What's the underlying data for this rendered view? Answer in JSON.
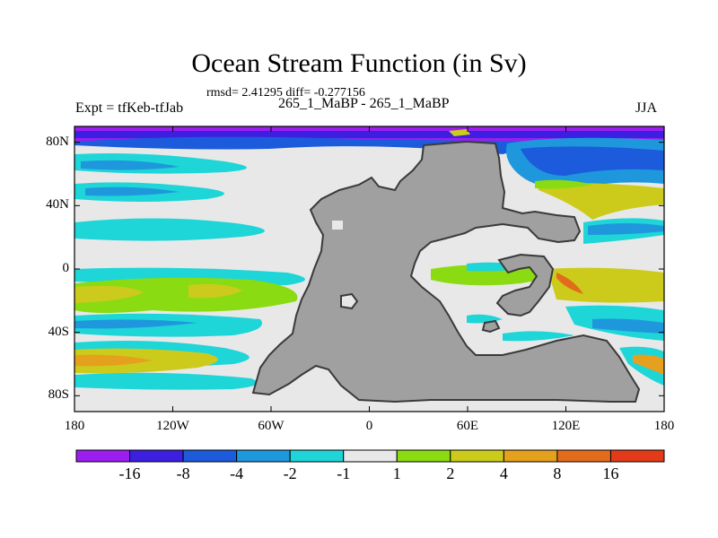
{
  "header": {
    "title": "Ocean Stream Function (in Sv)",
    "stats": "rmsd= 2.41295 diff= -0.277156",
    "left_label": "Expt = tfKeb-tfJab",
    "center_label": "265_1_MaBP - 265_1_MaBP",
    "right_label": "JJA"
  },
  "chart_data": {
    "type": "heatmap",
    "title": "Ocean Stream Function (in Sv)",
    "subtitle": "265_1_MaBP - 265_1_MaBP",
    "annotations": [
      "rmsd= 2.41295 diff= -0.277156",
      "Expt = tfKeb-tfJab",
      "JJA"
    ],
    "x_ticks": [
      "180",
      "120W",
      "60W",
      "0",
      "60E",
      "120E",
      "180"
    ],
    "x_tick_values": [
      -180,
      -120,
      -60,
      0,
      60,
      120,
      180
    ],
    "y_ticks": [
      "80N",
      "40N",
      "0",
      "40S",
      "80S"
    ],
    "y_tick_values": [
      80,
      40,
      0,
      -40,
      -80
    ],
    "xlim": [
      -180,
      180
    ],
    "ylim": [
      -90,
      90
    ],
    "land_color": "#A0A0A0",
    "colorbar": {
      "colors": [
        "#9B1EEE",
        "#3C1FE0",
        "#1C5BDB",
        "#1E97DC",
        "#1ED5D8",
        "#E8E8E8",
        "#8ADB12",
        "#CCCB1B",
        "#E5A01E",
        "#E36C1C",
        "#E33B1A"
      ],
      "labels": [
        "-16",
        "-8",
        "-4",
        "-2",
        "-1",
        "1",
        "2",
        "4",
        "8",
        "16"
      ]
    },
    "features": [
      {
        "name": "arctic band",
        "level": -16,
        "lon": [
          -180,
          180
        ],
        "lat": [
          73,
          86
        ]
      },
      {
        "name": "north pacific",
        "level": -4,
        "lon": [
          -180,
          -95
        ],
        "lat": [
          35,
          62
        ]
      },
      {
        "name": "north atlantic",
        "level": -4,
        "lon": [
          -10,
          55
        ],
        "lat": [
          10,
          68
        ]
      },
      {
        "name": "tropical pacific",
        "level": 2,
        "lon": [
          -180,
          -75
        ],
        "lat": [
          -42,
          -8
        ]
      },
      {
        "name": "southern ocean",
        "level": 4,
        "lon": [
          -180,
          -120
        ],
        "lat": [
          -72,
          -58
        ]
      },
      {
        "name": "tropical atlantic",
        "level": 2,
        "lon": [
          15,
          65
        ],
        "lat": [
          -10,
          5
        ]
      },
      {
        "name": "north east pacific",
        "level": 2,
        "lon": [
          100,
          150
        ],
        "lat": [
          35,
          50
        ]
      }
    ]
  }
}
